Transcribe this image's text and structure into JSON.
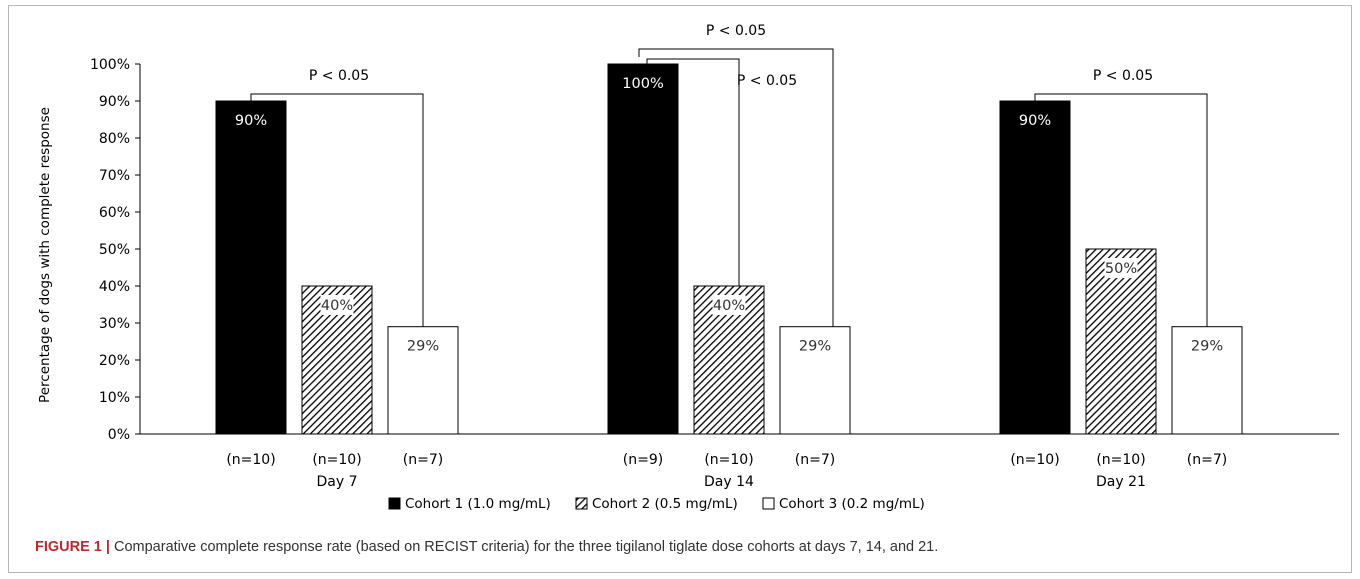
{
  "chart_data": {
    "type": "bar",
    "ylabel": "Percentage of dogs with complete response",
    "ylim": [
      0,
      100
    ],
    "yticks": [
      "0%",
      "10%",
      "20%",
      "30%",
      "40%",
      "50%",
      "60%",
      "70%",
      "80%",
      "90%",
      "100%"
    ],
    "categories": [
      "Day 7",
      "Day 14",
      "Day 21"
    ],
    "series": [
      {
        "name": "Cohort 1 (1.0 mg/mL)",
        "fill": "solid",
        "color": "#000000",
        "label_color": "#ffffff",
        "values": [
          90,
          100,
          90
        ],
        "labels": [
          "90%",
          "100%",
          "90%"
        ],
        "n": [
          "(n=10)",
          "(n=9)",
          "(n=10)"
        ]
      },
      {
        "name": "Cohort 2 (0.5 mg/mL)",
        "fill": "hatched",
        "color": "#000000",
        "label_color": "#333333",
        "values": [
          40,
          40,
          50
        ],
        "labels": [
          "40%",
          "40%",
          "50%"
        ],
        "n": [
          "(n=10)",
          "(n=10)",
          "(n=10)"
        ]
      },
      {
        "name": "Cohort 3 (0.2 mg/mL)",
        "fill": "white",
        "color": "#ffffff",
        "label_color": "#333333",
        "values": [
          29,
          29,
          29
        ],
        "labels": [
          "29%",
          "29%",
          "29%"
        ],
        "n": [
          "(n=7)",
          "(n=7)",
          "(n=7)"
        ]
      }
    ],
    "significance": [
      {
        "category": 0,
        "from_series": 0,
        "to_series": 2,
        "label": "P < 0.05"
      },
      {
        "category": 1,
        "from_series": 0,
        "to_series": 2,
        "label": "P < 0.05"
      },
      {
        "category": 1,
        "from_series": 0,
        "to_series": 1,
        "label": "P < 0.05"
      },
      {
        "category": 2,
        "from_series": 0,
        "to_series": 2,
        "label": "P < 0.05"
      }
    ],
    "grid": false,
    "legend_position": "bottom-center"
  },
  "caption": {
    "tag": "FIGURE 1 |",
    "text": " Comparative complete response rate (based on RECIST criteria) for the three tigilanol tiglate dose cohorts at days 7, 14, and 21."
  }
}
